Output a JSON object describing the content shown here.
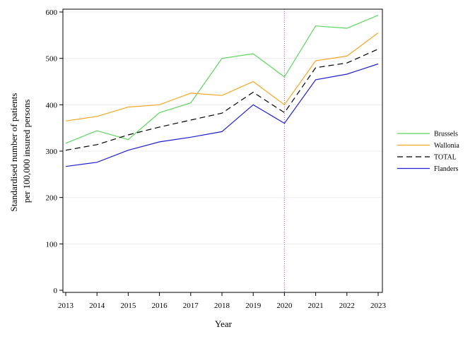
{
  "chart_data": {
    "type": "line",
    "xlabel": "Year",
    "ylabel_lines": [
      "Standardised number of patients",
      "per 100,000 insured persons"
    ],
    "x": [
      2013,
      2014,
      2015,
      2016,
      2017,
      2018,
      2019,
      2020,
      2021,
      2022,
      2023
    ],
    "x_ticks": [
      "2013",
      "2014",
      "2015",
      "2016",
      "2017",
      "2018",
      "2019",
      "2020",
      "2021",
      "2022",
      "2023"
    ],
    "ylim": [
      0,
      600
    ],
    "y_ticks": [
      0,
      100,
      200,
      300,
      400,
      500,
      600
    ],
    "grid": "horizontal",
    "reference_line_x": 2020,
    "legend_position": "right",
    "series": [
      {
        "name": "Brussels",
        "color": "#5cd65c",
        "dash": "solid",
        "values": [
          317,
          344,
          325,
          383,
          404,
          500,
          510,
          460,
          570,
          565,
          593
        ]
      },
      {
        "name": "Wallonia",
        "color": "#f5a623",
        "dash": "solid",
        "values": [
          365,
          375,
          395,
          400,
          425,
          420,
          450,
          400,
          495,
          505,
          555
        ]
      },
      {
        "name": "TOTAL",
        "color": "#000000",
        "dash": "dashed",
        "values": [
          302,
          314,
          335,
          352,
          367,
          382,
          427,
          383,
          480,
          490,
          520
        ]
      },
      {
        "name": "Flanders",
        "color": "#1f1fd6",
        "dash": "solid",
        "values": [
          267,
          276,
          302,
          320,
          330,
          342,
          400,
          360,
          454,
          466,
          488
        ]
      }
    ]
  }
}
